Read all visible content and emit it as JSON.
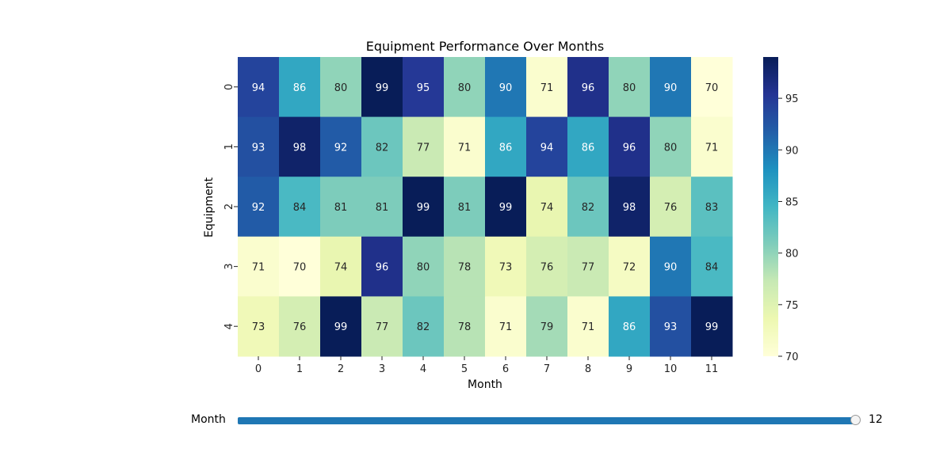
{
  "chart_data": {
    "type": "heatmap",
    "title": "Equipment Performance Over Months",
    "xlabel": "Month",
    "ylabel": "Equipment",
    "x_categories": [
      "0",
      "1",
      "2",
      "3",
      "4",
      "5",
      "6",
      "7",
      "8",
      "9",
      "10",
      "11"
    ],
    "y_categories": [
      "0",
      "1",
      "2",
      "3",
      "4"
    ],
    "values": [
      [
        94,
        86,
        80,
        99,
        95,
        80,
        90,
        71,
        96,
        80,
        90,
        70
      ],
      [
        93,
        98,
        92,
        82,
        77,
        71,
        86,
        94,
        86,
        96,
        80,
        71
      ],
      [
        92,
        84,
        81,
        81,
        99,
        81,
        99,
        74,
        82,
        98,
        76,
        83
      ],
      [
        71,
        70,
        74,
        96,
        80,
        78,
        73,
        76,
        77,
        72,
        90,
        84
      ],
      [
        73,
        76,
        99,
        77,
        82,
        78,
        71,
        79,
        71,
        86,
        93,
        99
      ]
    ],
    "colormap": "YlGnBu",
    "colorbar": {
      "min": 70,
      "max": 99,
      "ticks": [
        70,
        75,
        80,
        85,
        90,
        95
      ]
    }
  },
  "slider": {
    "label": "Month",
    "value": 12,
    "value_text": "12",
    "min": 1,
    "max": 12
  }
}
